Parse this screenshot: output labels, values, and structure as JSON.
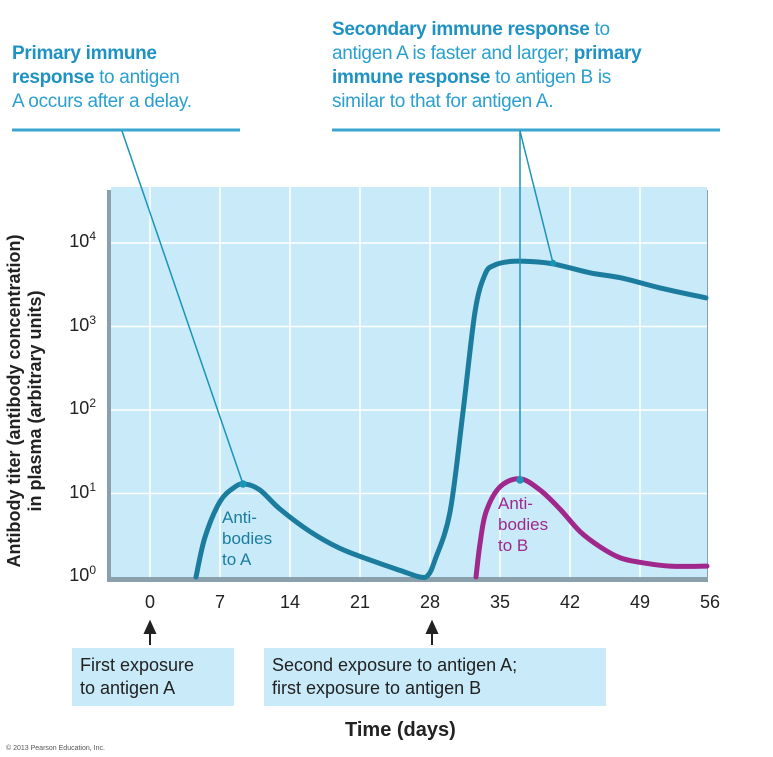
{
  "annotations": {
    "left": {
      "s1": "Primary immune",
      "s2": "response",
      "s3": " to antigen",
      "s4": "A occurs after a delay."
    },
    "right": {
      "s1": "Secondary immune response",
      "s2": " to",
      "s3": "antigen A is faster and larger; ",
      "s4": "primary",
      "s5": "immune response",
      "s6": " to antigen B is",
      "s7": "similar to that for antigen A."
    }
  },
  "exposures": {
    "first": {
      "line1": "First exposure",
      "line2": "to antigen A"
    },
    "second": {
      "line1": "Second exposure to antigen A;",
      "line2": "first exposure to antigen B"
    }
  },
  "copyright": "© 2013 Pearson Education, Inc.",
  "colors": {
    "antibodies_a": "#1b7c9e",
    "antibodies_b": "#a0288c",
    "plot_bg": "#c8eaf9",
    "annotation": "#2a9fd0"
  },
  "chart_data": {
    "type": "line",
    "title": "",
    "xlabel": "Time (days)",
    "ylabel_line1": "Antibody titer (antibody concentration)",
    "ylabel_line2": "in plasma (arbitrary units)",
    "yscale": "log",
    "xlim": [
      -4,
      57
    ],
    "ylim": [
      1,
      50000
    ],
    "grid": true,
    "xticks": [
      "0",
      "7",
      "14",
      "21",
      "28",
      "35",
      "42",
      "49",
      "56"
    ],
    "yticks": [
      {
        "base": "10",
        "exp": "0"
      },
      {
        "base": "10",
        "exp": "1"
      },
      {
        "base": "10",
        "exp": "2"
      },
      {
        "base": "10",
        "exp": "3"
      },
      {
        "base": "10",
        "exp": "4"
      }
    ],
    "series": [
      {
        "name": "Antibodies to A",
        "label_line1": "Anti-",
        "label_line2": "bodies",
        "label_line3": "to A",
        "x": [
          4.6,
          5.5,
          7,
          8.5,
          9.5,
          11,
          13,
          16,
          19,
          22,
          25,
          27,
          27.8,
          28.5,
          30,
          31.3,
          32.5,
          33.5,
          34.4,
          36,
          38,
          40.4,
          44,
          47.2,
          51,
          55.6
        ],
        "y": [
          1,
          3,
          8,
          12,
          13,
          11,
          6.5,
          3.5,
          2.2,
          1.6,
          1.2,
          1.0,
          1.05,
          1.6,
          6,
          95,
          1500,
          4200,
          5400,
          6000,
          6000,
          5600,
          4400,
          3800,
          2900,
          2200
        ]
      },
      {
        "name": "Antibodies to B",
        "label_line1": "Anti-",
        "label_line2": "bodies",
        "label_line3": "to B",
        "x": [
          32.6,
          33,
          33.6,
          35,
          37,
          39,
          41,
          43,
          45,
          47,
          49,
          52,
          55.7
        ],
        "y": [
          1,
          2.5,
          6,
          12,
          15,
          11,
          6.5,
          3.5,
          2.3,
          1.7,
          1.5,
          1.35,
          1.35
        ]
      }
    ]
  }
}
